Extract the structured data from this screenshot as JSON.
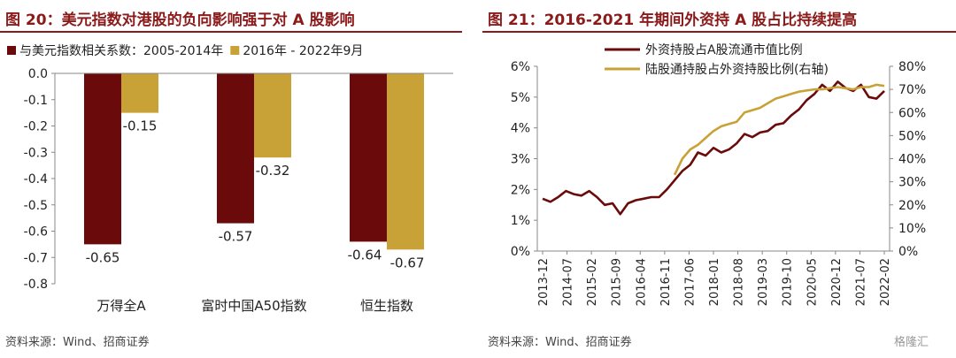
{
  "left": {
    "title": "图 20：美元指数对港股的负向影响强于对 A 股影响",
    "source": "资料来源：Wind、招商证券",
    "chart_data": {
      "type": "bar",
      "categories": [
        "万得全A",
        "富时中国A50指数",
        "恒生指数"
      ],
      "series": [
        {
          "name": "与美元指数相关系数：2005-2014年",
          "color": "#6b0a0a",
          "values": [
            -0.65,
            -0.57,
            -0.64
          ]
        },
        {
          "name": "2016年 - 2022年9月",
          "color": "#c9a237",
          "values": [
            -0.15,
            -0.32,
            -0.67
          ]
        }
      ],
      "data_labels": [
        [
          "-0.65",
          "-0.57",
          "-0.64"
        ],
        [
          "-0.15",
          "-0.32",
          "-0.67"
        ]
      ],
      "ylim": [
        -0.8,
        0.0
      ],
      "yticks": [
        "0.0",
        "-0.1",
        "-0.2",
        "-0.3",
        "-0.4",
        "-0.5",
        "-0.6",
        "-0.7",
        "-0.8"
      ],
      "legend_position": "top"
    }
  },
  "right": {
    "title": "图 21：2016-2021 年期间外资持 A 股占比持续提高",
    "source": "资料来源：Wind、招商证券",
    "watermark": "格隆汇",
    "chart_data": {
      "type": "line",
      "x": [
        "2013-12",
        "2014-03",
        "2014-05",
        "2014-07",
        "2014-10",
        "2015-01",
        "2015-04",
        "2015-06",
        "2015-09",
        "2015-12",
        "2016-02",
        "2016-04",
        "2016-07",
        "2016-09",
        "2016-11",
        "2017-01",
        "2017-04",
        "2017-06",
        "2017-09",
        "2017-11",
        "2018-01",
        "2018-04",
        "2018-06",
        "2018-08",
        "2018-10",
        "2019-01",
        "2019-03",
        "2019-05",
        "2019-08",
        "2019-10",
        "2020-01",
        "2020-03",
        "2020-05",
        "2020-08",
        "2020-10",
        "2020-12",
        "2021-02",
        "2021-04",
        "2021-07",
        "2021-09",
        "2021-11",
        "2022-01",
        "2022-02",
        "2022-04",
        "2022-06"
      ],
      "xticks": [
        "2013-12",
        "2014-07",
        "2015-02",
        "2015-09",
        "2016-04",
        "2016-11",
        "2017-06",
        "2018-01",
        "2018-08",
        "2019-03",
        "2019-10",
        "2020-05",
        "2020-12",
        "2021-07",
        "2022-02"
      ],
      "series": [
        {
          "name": "外资持股占A股流通市值比例",
          "axis": "left",
          "color": "#6b0a0a",
          "values": [
            1.7,
            1.6,
            1.75,
            1.95,
            1.85,
            1.8,
            1.95,
            1.75,
            1.5,
            1.55,
            1.2,
            1.55,
            1.65,
            1.7,
            1.75,
            1.75,
            2.0,
            2.3,
            2.6,
            2.8,
            3.2,
            3.1,
            3.35,
            3.2,
            3.3,
            3.5,
            3.8,
            3.7,
            3.85,
            3.9,
            4.1,
            4.15,
            4.4,
            4.6,
            4.9,
            5.1,
            5.4,
            5.2,
            5.5,
            5.3,
            5.2,
            5.4,
            5.0,
            4.95,
            5.2
          ]
        },
        {
          "name": "陆股通持股占外资持股比例(右轴)",
          "axis": "right",
          "color": "#c9a237",
          "values": [
            null,
            null,
            null,
            null,
            null,
            null,
            null,
            null,
            null,
            null,
            null,
            null,
            null,
            null,
            null,
            null,
            null,
            33,
            40,
            44,
            46,
            49,
            52,
            54,
            55,
            56,
            60,
            61,
            62,
            64,
            66,
            67,
            68,
            69,
            69.5,
            70,
            70,
            70.5,
            71,
            70.5,
            70,
            71,
            71,
            72,
            71.5
          ]
        }
      ],
      "y_left": {
        "ylim": [
          0,
          6
        ],
        "ticks": [
          "0%",
          "1%",
          "2%",
          "3%",
          "4%",
          "5%",
          "6%"
        ]
      },
      "y_right": {
        "ylim": [
          0,
          80
        ],
        "ticks": [
          "0%",
          "10%",
          "20%",
          "30%",
          "40%",
          "50%",
          "60%",
          "70%",
          "80%"
        ]
      },
      "legend_position": "top-left"
    }
  }
}
